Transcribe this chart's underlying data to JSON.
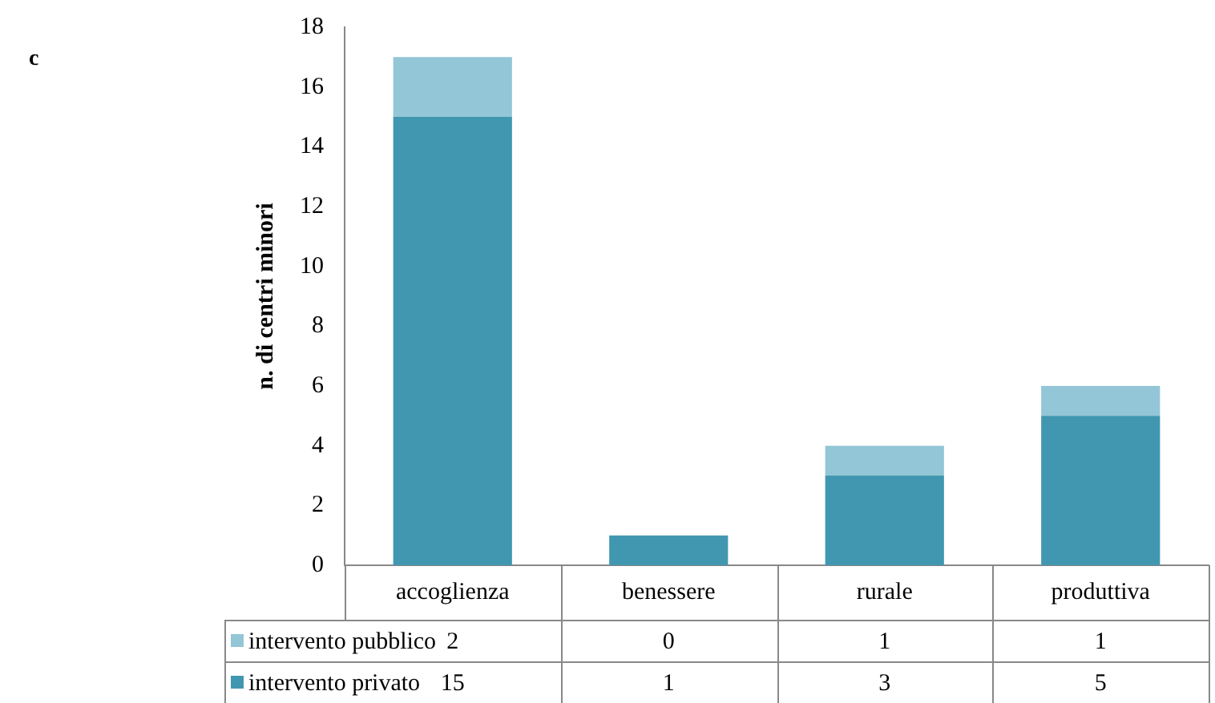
{
  "chart_data": {
    "type": "bar",
    "title": "c",
    "ylabel": "n. di centri minori",
    "stacked": true,
    "categories": [
      "accoglienza",
      "benessere",
      "rurale",
      "produttiva"
    ],
    "series": [
      {
        "name": "intervento privato",
        "color": "#4197b0",
        "values": [
          15,
          1,
          3,
          5
        ]
      },
      {
        "name": "intervento pubblico",
        "color": "#93c6d6",
        "values": [
          2,
          0,
          1,
          1
        ]
      }
    ],
    "ylim": [
      0,
      18
    ],
    "yticks": [
      0,
      2,
      4,
      6,
      8,
      10,
      12,
      14,
      16,
      18
    ],
    "grid": false,
    "legend": "bottom",
    "data_labels": true
  }
}
